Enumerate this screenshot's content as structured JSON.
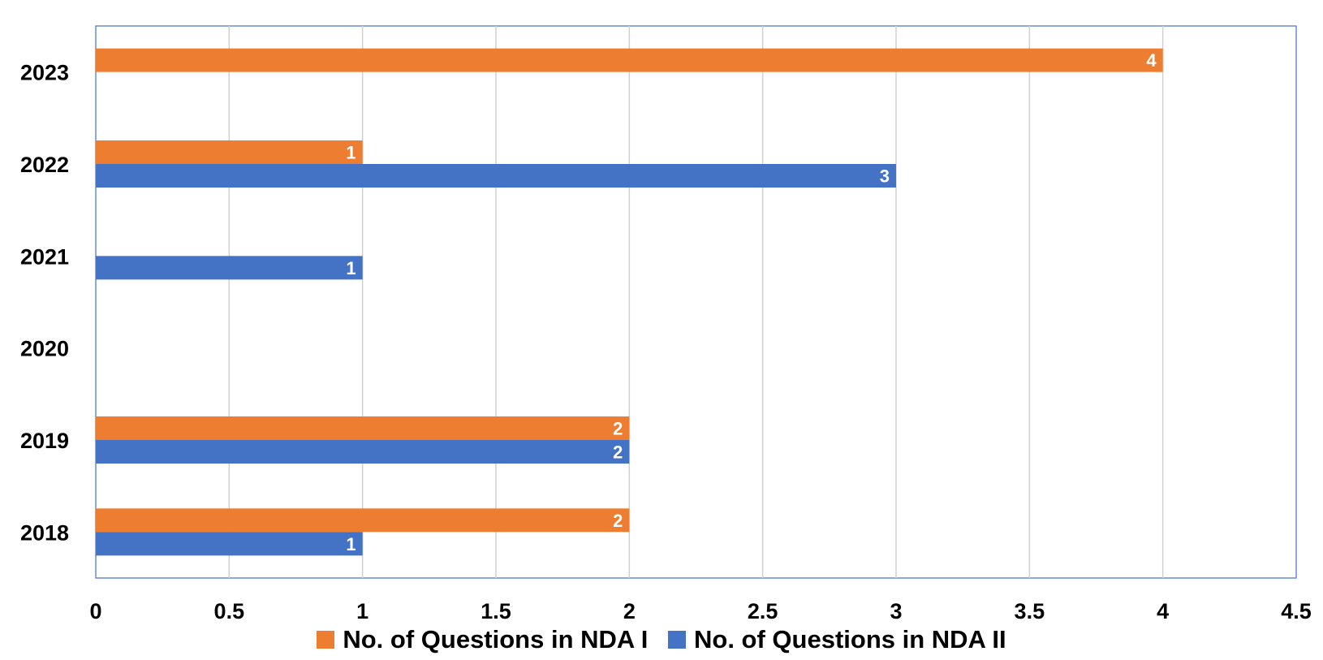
{
  "chart_data": {
    "type": "bar",
    "orientation": "horizontal",
    "categories": [
      "2023",
      "2022",
      "2021",
      "2020",
      "2019",
      "2018"
    ],
    "series": [
      {
        "name": "No. of Questions in NDA I",
        "color": "#ED7D31",
        "values": [
          4,
          1,
          null,
          null,
          2,
          2
        ]
      },
      {
        "name": "No. of Questions in NDA II",
        "color": "#4472C4",
        "values": [
          null,
          3,
          1,
          null,
          2,
          1
        ]
      }
    ],
    "x_ticks": [
      "0",
      "0.5",
      "1",
      "1.5",
      "2",
      "2.5",
      "3",
      "3.5",
      "4",
      "4.5"
    ],
    "xlim": [
      0,
      4.5
    ],
    "grid": "vertical",
    "legend": "bottom",
    "data_labels": true,
    "title": "",
    "xlabel": "",
    "ylabel": ""
  }
}
